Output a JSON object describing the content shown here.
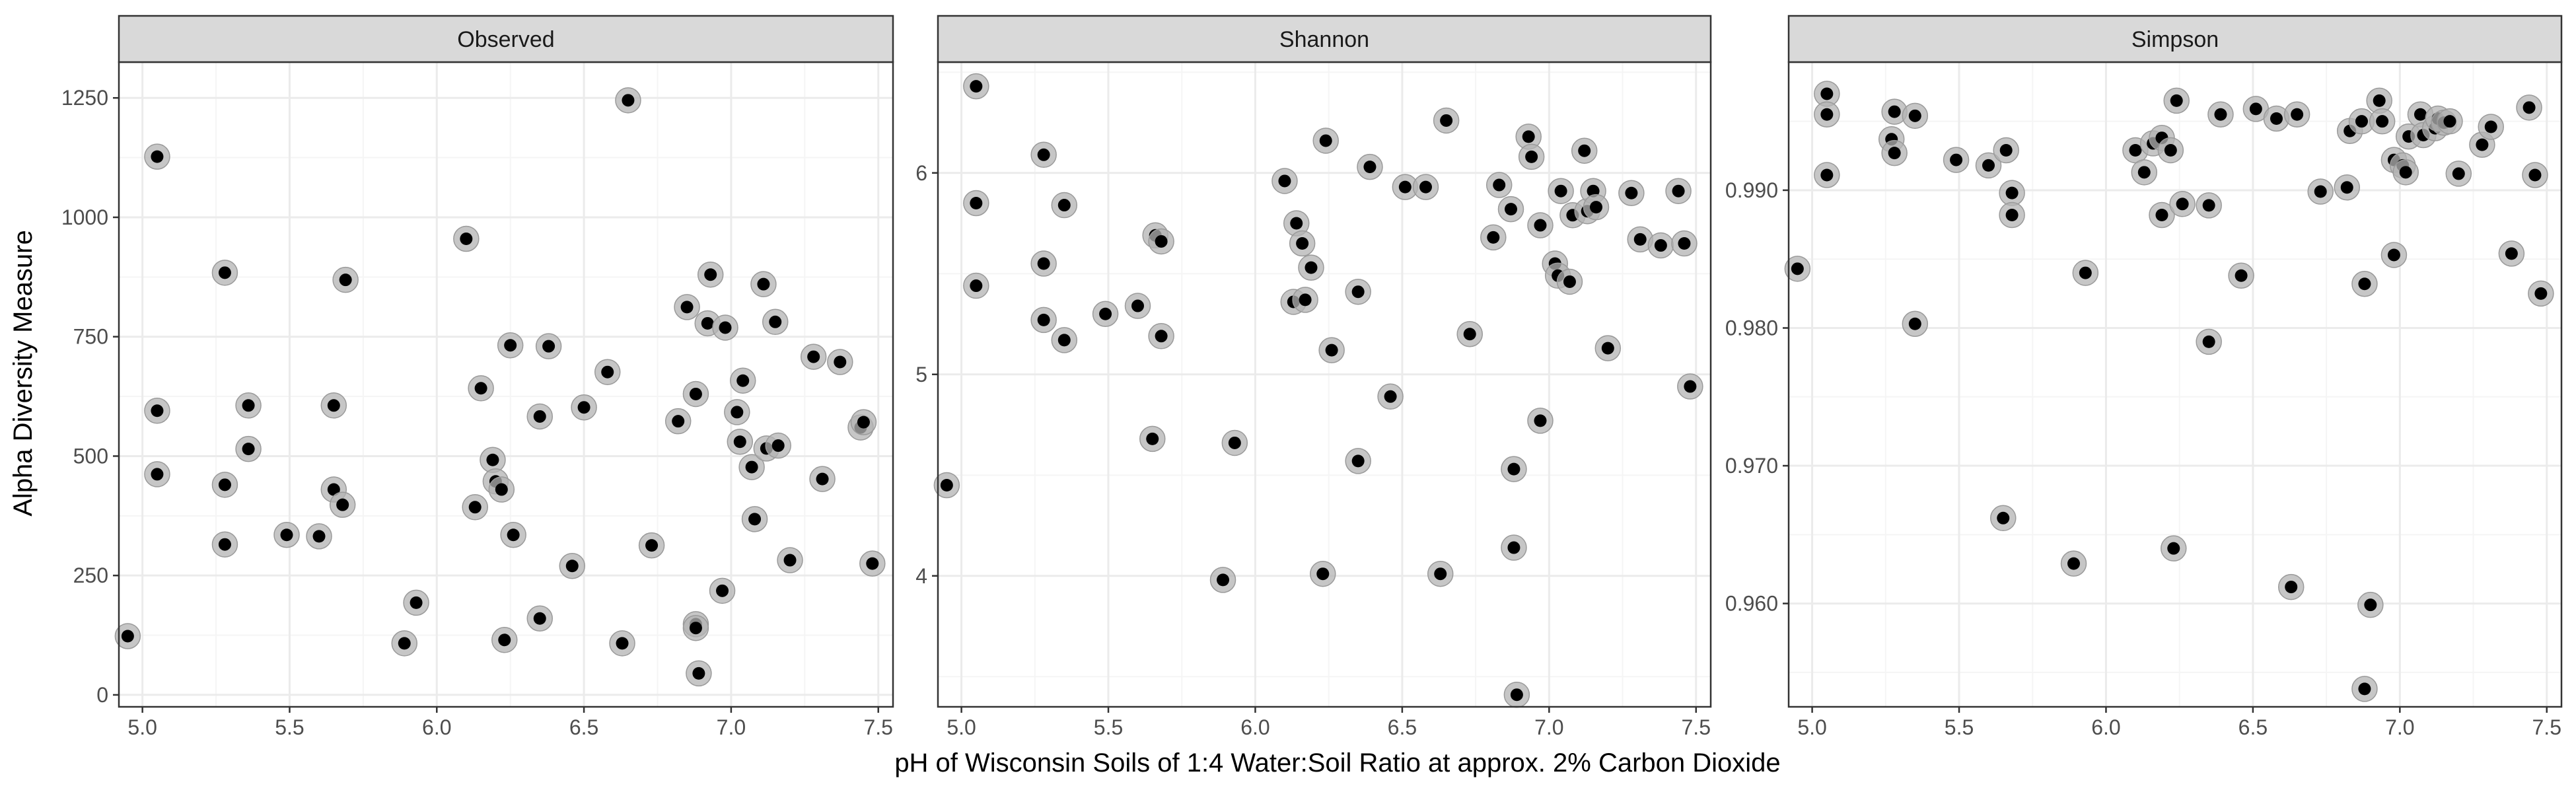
{
  "chart_data": {
    "type": "scatter",
    "ylabel": "Alpha Diversity Measure",
    "xlabel": "pH of Wisconsin Soils of 1:4 Water:Soil Ratio at approx. 2% Carbon Dioxide",
    "xlim": [
      4.92,
      7.55
    ],
    "xticks": [
      5.0,
      5.5,
      6.0,
      6.5,
      7.0,
      7.5
    ],
    "xtick_labels": [
      "5.0",
      "5.5",
      "6.0",
      "6.5",
      "7.0",
      "7.5"
    ],
    "grid": true,
    "facets": [
      {
        "strip": "Observed",
        "ylim": [
          -25,
          1325
        ],
        "yticks": [
          0,
          250,
          500,
          750,
          1000,
          1250
        ],
        "ytick_labels": [
          "0",
          "250",
          "500",
          "750",
          "1000",
          "1250"
        ],
        "points": [
          [
            4.95,
            123
          ],
          [
            5.05,
            1127
          ],
          [
            5.05,
            595
          ],
          [
            5.05,
            462
          ],
          [
            5.28,
            884
          ],
          [
            5.28,
            440
          ],
          [
            5.28,
            315
          ],
          [
            5.36,
            606
          ],
          [
            5.36,
            515
          ],
          [
            5.49,
            335
          ],
          [
            5.6,
            332
          ],
          [
            5.65,
            606
          ],
          [
            5.65,
            430
          ],
          [
            5.68,
            398
          ],
          [
            5.69,
            869
          ],
          [
            5.89,
            108
          ],
          [
            5.93,
            193
          ],
          [
            6.1,
            955
          ],
          [
            6.13,
            393
          ],
          [
            6.15,
            642
          ],
          [
            6.19,
            492
          ],
          [
            6.2,
            447
          ],
          [
            6.22,
            430
          ],
          [
            6.23,
            115
          ],
          [
            6.25,
            732
          ],
          [
            6.26,
            335
          ],
          [
            6.35,
            583
          ],
          [
            6.35,
            160
          ],
          [
            6.38,
            730
          ],
          [
            6.46,
            270
          ],
          [
            6.5,
            602
          ],
          [
            6.58,
            676
          ],
          [
            6.63,
            108
          ],
          [
            6.65,
            1245
          ],
          [
            6.73,
            313
          ],
          [
            6.82,
            573
          ],
          [
            6.85,
            812
          ],
          [
            6.88,
            630
          ],
          [
            6.88,
            148
          ],
          [
            6.88,
            140
          ],
          [
            6.89,
            45
          ],
          [
            6.92,
            778
          ],
          [
            6.93,
            880
          ],
          [
            6.97,
            218
          ],
          [
            6.98,
            769
          ],
          [
            7.02,
            592
          ],
          [
            7.03,
            530
          ],
          [
            7.04,
            658
          ],
          [
            7.07,
            477
          ],
          [
            7.08,
            368
          ],
          [
            7.11,
            860
          ],
          [
            7.12,
            516
          ],
          [
            7.15,
            781
          ],
          [
            7.16,
            522
          ],
          [
            7.2,
            282
          ],
          [
            7.28,
            708
          ],
          [
            7.31,
            452
          ],
          [
            7.37,
            697
          ],
          [
            7.44,
            560
          ],
          [
            7.45,
            571
          ],
          [
            7.48,
            275
          ]
        ]
      },
      {
        "strip": "Shannon",
        "ylim": [
          3.35,
          6.55
        ],
        "yticks": [
          4,
          5,
          6
        ],
        "ytick_labels": [
          "4",
          "5",
          "6"
        ],
        "points": [
          [
            4.95,
            4.45
          ],
          [
            5.05,
            6.43
          ],
          [
            5.05,
            5.85
          ],
          [
            5.05,
            5.44
          ],
          [
            5.28,
            6.09
          ],
          [
            5.28,
            5.55
          ],
          [
            5.28,
            5.27
          ],
          [
            5.35,
            5.84
          ],
          [
            5.35,
            5.17
          ],
          [
            5.49,
            5.3
          ],
          [
            5.6,
            5.34
          ],
          [
            5.65,
            4.68
          ],
          [
            5.66,
            5.69
          ],
          [
            5.68,
            5.66
          ],
          [
            5.68,
            5.19
          ],
          [
            5.89,
            3.98
          ],
          [
            5.93,
            4.66
          ],
          [
            6.1,
            5.96
          ],
          [
            6.13,
            5.36
          ],
          [
            6.14,
            5.75
          ],
          [
            6.16,
            5.65
          ],
          [
            6.17,
            5.37
          ],
          [
            6.19,
            5.53
          ],
          [
            6.23,
            4.01
          ],
          [
            6.24,
            6.16
          ],
          [
            6.26,
            5.12
          ],
          [
            6.35,
            5.41
          ],
          [
            6.35,
            4.57
          ],
          [
            6.39,
            6.03
          ],
          [
            6.46,
            4.89
          ],
          [
            6.51,
            5.93
          ],
          [
            6.58,
            5.93
          ],
          [
            6.63,
            4.01
          ],
          [
            6.65,
            6.26
          ],
          [
            6.73,
            5.2
          ],
          [
            6.81,
            5.68
          ],
          [
            6.83,
            5.94
          ],
          [
            6.87,
            5.82
          ],
          [
            6.88,
            4.53
          ],
          [
            6.88,
            4.14
          ],
          [
            6.89,
            3.41
          ],
          [
            6.93,
            6.18
          ],
          [
            6.94,
            6.08
          ],
          [
            6.97,
            5.74
          ],
          [
            6.97,
            4.77
          ],
          [
            7.02,
            5.55
          ],
          [
            7.03,
            5.49
          ],
          [
            7.04,
            5.91
          ],
          [
            7.07,
            5.46
          ],
          [
            7.08,
            5.79
          ],
          [
            7.12,
            6.11
          ],
          [
            7.13,
            5.81
          ],
          [
            7.15,
            5.91
          ],
          [
            7.16,
            5.83
          ],
          [
            7.2,
            5.13
          ],
          [
            7.28,
            5.9
          ],
          [
            7.31,
            5.67
          ],
          [
            7.38,
            5.64
          ],
          [
            7.44,
            5.91
          ],
          [
            7.46,
            5.65
          ],
          [
            7.48,
            4.94
          ]
        ]
      },
      {
        "strip": "Simpson",
        "ylim": [
          0.9525,
          0.9993
        ],
        "yticks": [
          0.96,
          0.97,
          0.98,
          0.99
        ],
        "ytick_labels": [
          "0.960",
          "0.970",
          "0.980",
          "0.990"
        ],
        "points": [
          [
            4.95,
            0.9843
          ],
          [
            5.05,
            0.997
          ],
          [
            5.05,
            0.9955
          ],
          [
            5.05,
            0.9911
          ],
          [
            5.27,
            0.9937
          ],
          [
            5.28,
            0.9957
          ],
          [
            5.28,
            0.9927
          ],
          [
            5.35,
            0.9954
          ],
          [
            5.35,
            0.9803
          ],
          [
            5.49,
            0.9922
          ],
          [
            5.6,
            0.9918
          ],
          [
            5.65,
            0.9662
          ],
          [
            5.66,
            0.9929
          ],
          [
            5.68,
            0.9898
          ],
          [
            5.68,
            0.9882
          ],
          [
            5.89,
            0.9629
          ],
          [
            5.93,
            0.984
          ],
          [
            6.1,
            0.9929
          ],
          [
            6.13,
            0.9913
          ],
          [
            6.16,
            0.9934
          ],
          [
            6.19,
            0.9938
          ],
          [
            6.19,
            0.9882
          ],
          [
            6.22,
            0.9929
          ],
          [
            6.23,
            0.964
          ],
          [
            6.24,
            0.9965
          ],
          [
            6.26,
            0.989
          ],
          [
            6.35,
            0.9889
          ],
          [
            6.35,
            0.979
          ],
          [
            6.39,
            0.9955
          ],
          [
            6.46,
            0.9838
          ],
          [
            6.51,
            0.9959
          ],
          [
            6.58,
            0.9952
          ],
          [
            6.63,
            0.9612
          ],
          [
            6.65,
            0.9955
          ],
          [
            6.73,
            0.9899
          ],
          [
            6.82,
            0.9902
          ],
          [
            6.83,
            0.9943
          ],
          [
            6.87,
            0.995
          ],
          [
            6.88,
            0.9832
          ],
          [
            6.88,
            0.9538
          ],
          [
            6.9,
            0.9599
          ],
          [
            6.93,
            0.9965
          ],
          [
            6.94,
            0.995
          ],
          [
            6.98,
            0.9853
          ],
          [
            6.98,
            0.9922
          ],
          [
            7.01,
            0.9918
          ],
          [
            7.02,
            0.9913
          ],
          [
            7.03,
            0.9939
          ],
          [
            7.07,
            0.9955
          ],
          [
            7.08,
            0.994
          ],
          [
            7.12,
            0.9945
          ],
          [
            7.13,
            0.9952
          ],
          [
            7.15,
            0.9949
          ],
          [
            7.17,
            0.995
          ],
          [
            7.2,
            0.9912
          ],
          [
            7.28,
            0.9933
          ],
          [
            7.31,
            0.9946
          ],
          [
            7.38,
            0.9854
          ],
          [
            7.44,
            0.996
          ],
          [
            7.46,
            0.9911
          ],
          [
            7.48,
            0.9825
          ]
        ]
      }
    ]
  },
  "colors": {
    "point": "#000000",
    "halo": "#b3b3b3",
    "strip_fill": "#d9d9d9",
    "border": "#333333",
    "grid_major": "#ebebeb",
    "grid_minor": "#f5f5f5",
    "tick_text": "#4d4d4d",
    "title_text": "#000000"
  }
}
